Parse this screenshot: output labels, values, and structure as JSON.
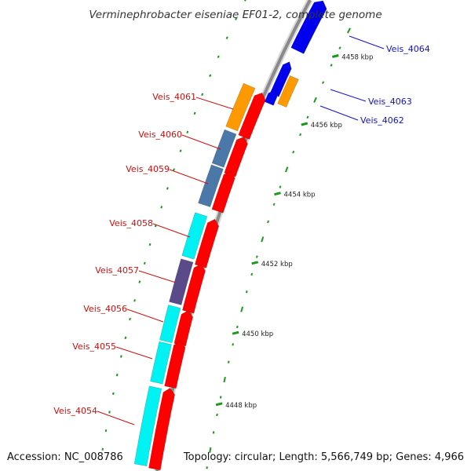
{
  "title": "Verminephrobacter eiseniae EF01-2, complete genome",
  "accession_text": "Accession: NC_008786",
  "topology_text": "Topology: circular; Length: 5,566,749 bp; Genes: 4,966",
  "colors": {
    "backbone": "#8a8a8a",
    "tick": "#1a9a1a",
    "left_label": "#cc1111",
    "right_label": "#1111cc",
    "forward_gene": "#ff0000",
    "cyan_feature": "#00f2f2",
    "steel_feature": "#4a78a8",
    "orange_feature": "#ff9900",
    "purple_feature": "#5a4a8a",
    "blue_gene": "#0000ee"
  },
  "kbp_ticks": [
    {
      "label": "4458 kbp"
    },
    {
      "label": "4456 kbp"
    },
    {
      "label": "4454 kbp"
    },
    {
      "label": "4452 kbp"
    },
    {
      "label": "4450 kbp"
    },
    {
      "label": "4448 kbp"
    }
  ],
  "left_genes": [
    {
      "label": "Veis_4061",
      "color": "orange_feature"
    },
    {
      "label": "Veis_4060",
      "color": "steel_feature"
    },
    {
      "label": "Veis_4059",
      "color": "steel_feature"
    },
    {
      "label": "Veis_4058",
      "color": "cyan_feature"
    },
    {
      "label": "Veis_4057",
      "color": "purple_feature"
    },
    {
      "label": "Veis_4056",
      "color": "cyan_feature"
    },
    {
      "label": "Veis_4055",
      "color": "cyan_feature"
    },
    {
      "label": "Veis_4054",
      "color": "cyan_feature"
    }
  ],
  "right_genes": [
    {
      "label": "Veis_4064",
      "color": "blue_gene"
    },
    {
      "label": "Veis_4063",
      "color": "orange_feature"
    },
    {
      "label": "Veis_4062",
      "color": "blue_gene"
    }
  ]
}
